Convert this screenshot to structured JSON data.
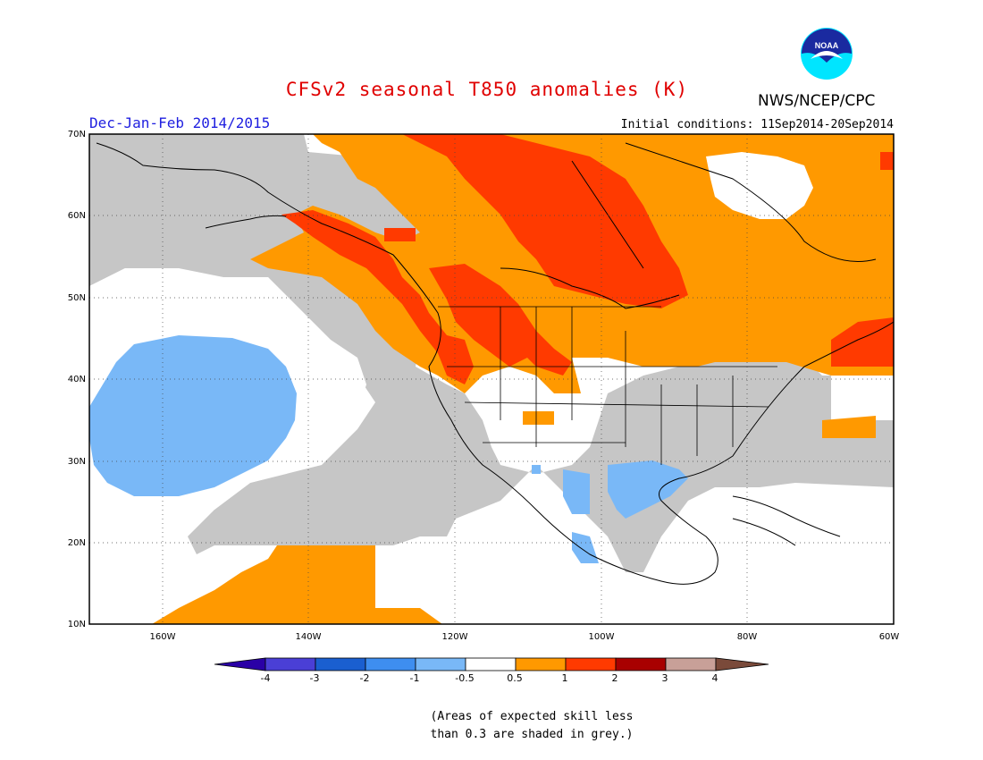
{
  "header": {
    "title": "CFSv2 seasonal T850 anomalies (K)",
    "season": "Dec-Jan-Feb 2014/2015",
    "initial_conditions": "Initial conditions: 11Sep2014-20Sep2014",
    "agency": "NWS/NCEP/CPC",
    "logo_text": "NOAA"
  },
  "axes": {
    "lat_labels": [
      "70N",
      "60N",
      "50N",
      "40N",
      "30N",
      "20N",
      "10N"
    ],
    "lon_labels": [
      "160W",
      "140W",
      "120W",
      "100W",
      "80W",
      "60W"
    ],
    "lat_range": [
      10,
      70
    ],
    "lon_range": [
      -170,
      -60
    ]
  },
  "legend": {
    "tick_labels": [
      "-4",
      "-3",
      "-2",
      "-1",
      "-0.5",
      "0.5",
      "1",
      "2",
      "3",
      "4"
    ],
    "colors": [
      "#2a00a6",
      "#4a3fd6",
      "#1a5fd0",
      "#3e8ef0",
      "#79b8f7",
      "#ffffff",
      "#ff9900",
      "#ff3a00",
      "#a80000",
      "#c8a098",
      "#7a4a3a"
    ],
    "skill_note_line1": "(Areas of expected skill less",
    "skill_note_line2": "than 0.3 are shaded in grey.)",
    "grey_color": "#c6c6c6"
  }
}
